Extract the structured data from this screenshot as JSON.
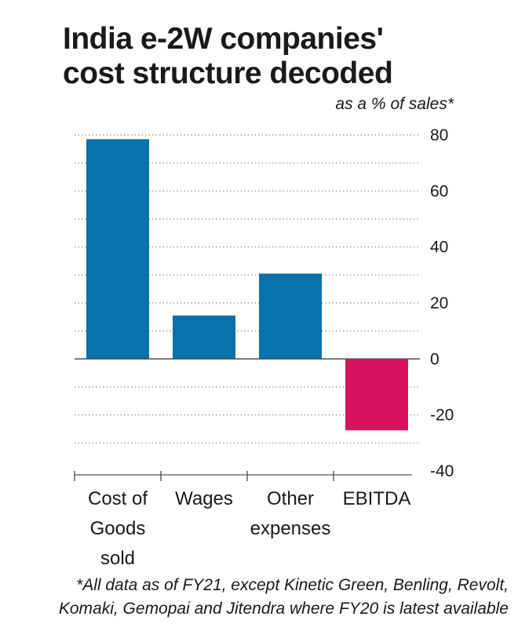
{
  "title_lines": [
    "India e-2W companies'",
    "cost structure decoded"
  ],
  "unit_label": "as a % of sales*",
  "footnote_lines": [
    "*All data as of FY21, except Kinetic Green, Benling, Revolt,",
    "Komaki, Gemopai and Jitendra where FY20 is latest available"
  ],
  "colors": {
    "positive": "#0a72aa",
    "negative": "#d6135d",
    "grid": "#8a8a8a",
    "axis": "#555555"
  },
  "chart_data": {
    "type": "bar",
    "title": "India e-2W companies' cost structure decoded",
    "ylabel": "as a % of sales*",
    "categories": [
      [
        "Cost of",
        "Goods",
        "sold"
      ],
      [
        "Wages"
      ],
      [
        "Other",
        "expenses"
      ],
      [
        "EBITDA"
      ]
    ],
    "values": [
      78.5,
      15.5,
      30.5,
      -25.5
    ],
    "ylim": [
      -40,
      80
    ],
    "yticks": [
      80,
      60,
      40,
      20,
      0,
      -20,
      -40
    ],
    "grid": "dotted horizontal",
    "y_axis_side": "right"
  }
}
